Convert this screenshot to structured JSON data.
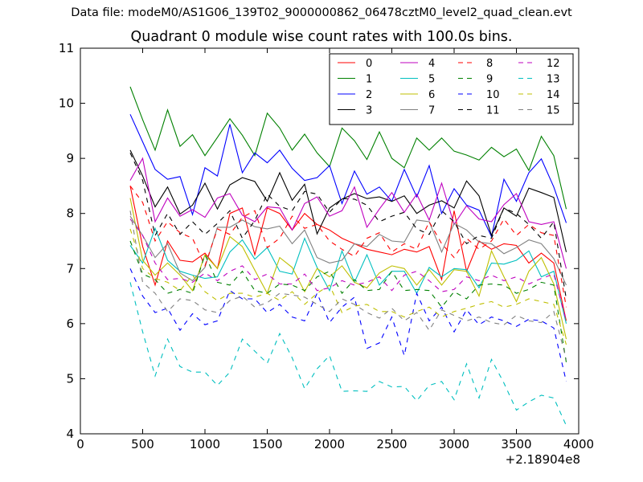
{
  "header": {
    "suptitle": "Data file: modeM0/AS1G06_139T02_9000000862_06478cztM0_level2_quad_clean.evt"
  },
  "chart_data": {
    "type": "line",
    "title": "Quadrant 0 module wise count rates with 100.0s bins.",
    "xlabel": "",
    "ylabel": "",
    "x_offset_label": "+2.18904e8",
    "xlim": [
      0,
      4000
    ],
    "ylim": [
      4,
      11
    ],
    "x_ticks": [
      0,
      500,
      1000,
      1500,
      2000,
      2500,
      3000,
      3500,
      4000
    ],
    "y_ticks": [
      4,
      5,
      6,
      7,
      8,
      9,
      10,
      11
    ],
    "grid": false,
    "legend_position": "top-right",
    "legend_columns": 4,
    "x": [
      400,
      500,
      600,
      700,
      800,
      900,
      1000,
      1100,
      1200,
      1300,
      1400,
      1500,
      1600,
      1700,
      1800,
      1900,
      2000,
      2100,
      2200,
      2300,
      2400,
      2500,
      2600,
      2700,
      2800,
      2900,
      3000,
      3100,
      3200,
      3300,
      3400,
      3500,
      3600,
      3700,
      3800,
      3900
    ],
    "series": [
      {
        "name": "0",
        "color": "#ff0000",
        "linestyle": "solid",
        "values": [
          8.5,
          7.4,
          6.7,
          7.5,
          7.15,
          7.12,
          7.28,
          7.0,
          8.0,
          8.1,
          7.25,
          8.1,
          8.0,
          7.7,
          8.0,
          7.8,
          7.7,
          7.55,
          7.45,
          7.35,
          7.3,
          7.25,
          7.35,
          7.3,
          7.4,
          6.8,
          8.05,
          6.95,
          7.5,
          7.35,
          7.45,
          7.42,
          7.1,
          7.28,
          7.1,
          6.05
        ]
      },
      {
        "name": "1",
        "color": "#008000",
        "linestyle": "solid",
        "values": [
          10.3,
          9.7,
          9.15,
          9.88,
          9.22,
          9.43,
          9.05,
          9.38,
          9.72,
          9.42,
          9.05,
          9.82,
          9.55,
          9.15,
          9.44,
          9.1,
          8.85,
          9.55,
          9.32,
          8.98,
          9.48,
          9.0,
          8.83,
          9.37,
          9.15,
          9.37,
          9.13,
          9.06,
          8.97,
          9.2,
          9.03,
          9.17,
          8.78,
          9.4,
          9.05,
          8.08
        ]
      },
      {
        "name": "2",
        "color": "#0000ff",
        "linestyle": "solid",
        "values": [
          9.8,
          9.3,
          8.8,
          8.62,
          8.67,
          7.98,
          8.83,
          8.68,
          9.62,
          8.74,
          9.1,
          8.92,
          9.15,
          8.82,
          8.6,
          8.65,
          8.87,
          8.18,
          8.77,
          8.35,
          8.48,
          8.22,
          8.8,
          8.3,
          8.87,
          8.0,
          8.45,
          8.15,
          8.06,
          7.58,
          8.62,
          8.22,
          8.74,
          8.99,
          8.48,
          7.83
        ]
      },
      {
        "name": "3",
        "color": "#000000",
        "linestyle": "solid",
        "values": [
          9.15,
          8.68,
          8.12,
          8.48,
          7.99,
          8.15,
          8.55,
          8.08,
          8.52,
          8.65,
          8.58,
          8.22,
          8.74,
          8.24,
          8.53,
          7.63,
          8.1,
          8.26,
          8.36,
          8.27,
          8.3,
          8.22,
          8.32,
          8.0,
          8.15,
          8.23,
          8.1,
          8.59,
          8.32,
          7.6,
          8.1,
          7.95,
          8.46,
          8.38,
          8.29,
          7.3
        ]
      },
      {
        "name": "4",
        "color": "#bf00bf",
        "linestyle": "solid",
        "values": [
          8.6,
          9.0,
          7.85,
          8.28,
          7.95,
          8.07,
          7.93,
          8.28,
          8.36,
          7.97,
          7.85,
          8.12,
          8.1,
          7.7,
          8.18,
          8.3,
          7.95,
          8.05,
          8.48,
          7.75,
          8.08,
          8.38,
          8.02,
          8.35,
          7.88,
          8.55,
          7.8,
          8.14,
          7.9,
          7.85,
          8.16,
          8.36,
          7.85,
          7.8,
          7.85,
          7.0
        ]
      },
      {
        "name": "5",
        "color": "#00bfbf",
        "linestyle": "solid",
        "values": [
          7.42,
          7.1,
          7.73,
          7.15,
          6.95,
          6.88,
          6.82,
          6.85,
          7.3,
          7.52,
          7.17,
          7.38,
          6.95,
          6.9,
          7.55,
          7.02,
          6.6,
          7.32,
          6.75,
          7.25,
          6.7,
          6.95,
          6.95,
          6.55,
          7.02,
          6.85,
          7.0,
          6.98,
          6.65,
          7.1,
          7.08,
          7.15,
          7.32,
          6.85,
          6.95,
          6.0
        ]
      },
      {
        "name": "6",
        "color": "#bfbf00",
        "linestyle": "solid",
        "values": [
          8.28,
          7.15,
          6.88,
          7.1,
          6.88,
          6.6,
          7.25,
          7.0,
          7.58,
          7.4,
          6.97,
          6.55,
          7.2,
          7.02,
          6.58,
          7.0,
          6.85,
          7.05,
          6.75,
          6.65,
          6.92,
          7.05,
          7.0,
          6.7,
          6.98,
          6.7,
          6.98,
          6.95,
          6.5,
          7.32,
          6.85,
          6.4,
          6.95,
          7.2,
          6.72,
          5.72
        ]
      },
      {
        "name": "7",
        "color": "#808080",
        "linestyle": "solid",
        "values": [
          7.95,
          7.6,
          7.2,
          7.45,
          6.92,
          6.78,
          7.02,
          7.75,
          7.75,
          7.88,
          7.76,
          7.72,
          7.77,
          7.45,
          7.7,
          7.2,
          7.1,
          7.15,
          7.45,
          7.4,
          7.62,
          7.5,
          7.48,
          7.88,
          7.85,
          7.3,
          7.82,
          7.7,
          7.48,
          7.45,
          7.27,
          7.38,
          7.52,
          7.45,
          7.18,
          6.7
        ]
      },
      {
        "name": "8",
        "color": "#ff0000",
        "linestyle": "dashed",
        "values": [
          8.5,
          8.2,
          7.5,
          7.85,
          7.65,
          7.55,
          7.05,
          7.72,
          7.62,
          7.93,
          8.05,
          7.38,
          7.55,
          7.95,
          7.73,
          7.8,
          7.5,
          7.35,
          7.22,
          7.55,
          7.65,
          7.3,
          7.45,
          7.35,
          7.85,
          7.45,
          7.2,
          7.55,
          7.35,
          7.5,
          7.9,
          7.6,
          7.8,
          7.65,
          7.6,
          6.3
        ]
      },
      {
        "name": "9",
        "color": "#008000",
        "linestyle": "dashed",
        "values": [
          7.5,
          6.9,
          6.8,
          6.55,
          6.62,
          6.55,
          7.25,
          6.75,
          6.7,
          6.95,
          6.6,
          6.55,
          6.72,
          6.7,
          6.6,
          6.85,
          6.95,
          6.55,
          6.8,
          6.6,
          6.62,
          6.95,
          6.6,
          6.62,
          6.6,
          6.3,
          6.58,
          6.45,
          6.7,
          6.72,
          6.7,
          6.55,
          6.62,
          6.75,
          6.7,
          5.3
        ]
      },
      {
        "name": "10",
        "color": "#0000ff",
        "linestyle": "dashed",
        "values": [
          7.0,
          6.5,
          6.2,
          6.28,
          5.88,
          6.18,
          5.98,
          6.05,
          6.6,
          6.45,
          6.45,
          6.2,
          6.35,
          6.12,
          6.05,
          6.55,
          6.02,
          6.3,
          6.48,
          5.55,
          5.65,
          6.12,
          5.42,
          6.55,
          6.05,
          6.3,
          5.85,
          6.25,
          5.98,
          6.12,
          6.05,
          5.95,
          6.08,
          6.05,
          5.92,
          4.95
        ]
      },
      {
        "name": "11",
        "color": "#000000",
        "linestyle": "dashed",
        "values": [
          9.1,
          8.6,
          7.6,
          8.0,
          7.62,
          7.85,
          7.62,
          7.82,
          8.05,
          7.55,
          7.87,
          8.35,
          8.13,
          8.05,
          8.4,
          8.35,
          8.02,
          8.27,
          8.26,
          8.15,
          7.85,
          7.95,
          8.02,
          7.72,
          7.62,
          8.05,
          7.85,
          7.45,
          7.6,
          7.55,
          8.1,
          8.0,
          7.8,
          7.55,
          7.85,
          6.45
        ]
      },
      {
        "name": "12",
        "color": "#bf00bf",
        "linestyle": "dashed",
        "values": [
          7.9,
          7.6,
          7.1,
          6.8,
          6.82,
          6.75,
          6.92,
          6.78,
          6.95,
          7.05,
          6.8,
          6.9,
          6.72,
          6.72,
          6.9,
          6.6,
          6.65,
          6.78,
          6.7,
          6.75,
          6.85,
          6.6,
          6.88,
          6.95,
          6.78,
          6.58,
          6.62,
          6.85,
          6.78,
          6.88,
          6.78,
          6.85,
          6.72,
          6.82,
          6.9,
          6.05
        ]
      },
      {
        "name": "13",
        "color": "#00bfbf",
        "linestyle": "dashed",
        "values": [
          6.75,
          5.85,
          5.05,
          5.72,
          5.22,
          5.12,
          5.12,
          4.88,
          5.12,
          5.72,
          5.5,
          5.28,
          5.82,
          5.38,
          4.82,
          5.18,
          5.42,
          4.77,
          4.78,
          4.77,
          4.95,
          4.85,
          4.86,
          4.6,
          4.88,
          4.95,
          4.62,
          5.27,
          4.65,
          5.35,
          4.92,
          4.43,
          4.58,
          4.7,
          4.65,
          4.15
        ]
      },
      {
        "name": "14",
        "color": "#bfbf00",
        "linestyle": "dashed",
        "values": [
          7.72,
          7.0,
          6.82,
          6.75,
          6.6,
          6.88,
          6.58,
          6.42,
          6.55,
          6.55,
          6.48,
          6.55,
          6.42,
          6.58,
          6.35,
          6.55,
          6.7,
          6.2,
          6.32,
          6.35,
          6.22,
          6.22,
          6.12,
          6.22,
          6.3,
          6.12,
          6.22,
          6.28,
          6.35,
          6.4,
          6.3,
          6.35,
          6.45,
          6.4,
          6.35,
          5.62
        ]
      },
      {
        "name": "15",
        "color": "#808080",
        "linestyle": "dashed",
        "values": [
          8.05,
          6.75,
          6.55,
          6.22,
          6.45,
          6.42,
          6.25,
          6.2,
          6.42,
          6.5,
          6.3,
          6.38,
          6.55,
          6.52,
          6.48,
          6.35,
          6.22,
          6.45,
          6.35,
          6.2,
          6.1,
          6.28,
          6.05,
          6.2,
          5.88,
          6.25,
          6.15,
          6.05,
          6.12,
          6.02,
          5.98,
          6.15,
          6.05,
          6.02,
          6.22,
          5.35
        ]
      }
    ]
  }
}
